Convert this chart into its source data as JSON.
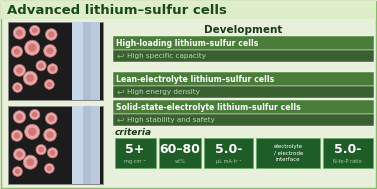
{
  "title": "Advanced lithium–sulfur cells",
  "title_color": "#1a4a1a",
  "title_bg": "#ddeec8",
  "outer_bg": "#e8f0dc",
  "border_color": "#8ab870",
  "dev_title": "Development",
  "rows": [
    {
      "title": "High-loading lithium–sulfur cells",
      "sub": "High specific capacity",
      "title_bg": "#4a7c3a",
      "sub_bg": "#3a6030"
    },
    {
      "title": "Lean-electrolyte lithium–sulfur cells",
      "sub": "High energy density",
      "title_bg": "#4a7c3a",
      "sub_bg": "#3a6030"
    },
    {
      "title": "Solid-state-electrolyte lithium–sulfur cells",
      "sub": "High stability and safety",
      "title_bg": "#4a7c3a",
      "sub_bg": "#3a6030"
    }
  ],
  "criteria_title": "criteria",
  "criteria": [
    {
      "main": "5+",
      "sub": "mg cm⁻²",
      "big": true
    },
    {
      "main": "60–80",
      "sub": "wt%",
      "big": true
    },
    {
      "main": "5.0-",
      "sub": "μL mA·h⁻¹",
      "big": true
    },
    {
      "main": "electrolyte\n/ electrode\ninterface",
      "sub": "",
      "big": false
    },
    {
      "main": "5.0-",
      "sub": "N-to-P ratio",
      "big": true
    }
  ],
  "crit_bg": "#1e5c28",
  "crit_border": "#6aaa6a",
  "arrow_color": "#80c080",
  "sub_text_color": "#b8d8b8"
}
